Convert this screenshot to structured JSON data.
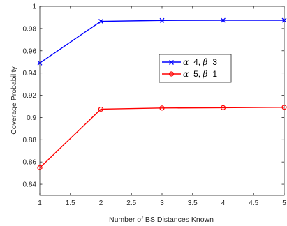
{
  "chart_data": {
    "type": "line",
    "title": "",
    "xlabel": "Number of BS Distances Known",
    "ylabel": "Coverage Probability",
    "xlim": [
      1,
      5
    ],
    "ylim": [
      0.83,
      1
    ],
    "xticks": [
      "1",
      "1.5",
      "2",
      "2.5",
      "3",
      "3.5",
      "4",
      "4.5",
      "5"
    ],
    "yticks": [
      "0.84",
      "0.86",
      "0.88",
      "0.9",
      "0.92",
      "0.94",
      "0.96",
      "0.98",
      "1"
    ],
    "grid": false,
    "legend_position": "center-right",
    "x": [
      1,
      2,
      3,
      4,
      5
    ],
    "series": [
      {
        "name": "α=4, β=3",
        "legend": {
          "p1": "α",
          "v1": "=4, ",
          "p2": "β",
          "v2": "=3"
        },
        "marker": "x",
        "color": "#0000ff",
        "values": [
          0.949,
          0.9865,
          0.9873,
          0.9874,
          0.9874
        ]
      },
      {
        "name": "α=5, β=1",
        "legend": {
          "p1": "α",
          "v1": "=5, ",
          "p2": "β",
          "v2": "=1"
        },
        "marker": "o",
        "color": "#ff0000",
        "values": [
          0.8548,
          0.9075,
          0.9085,
          0.9088,
          0.9092
        ]
      }
    ]
  }
}
